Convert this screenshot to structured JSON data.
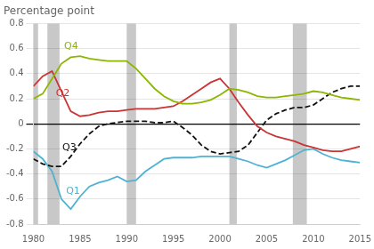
{
  "chart_data": {
    "type": "line",
    "title": "Percentage point",
    "x": [
      1980,
      1981,
      1982,
      1983,
      1984,
      1985,
      1986,
      1987,
      1988,
      1989,
      1990,
      1991,
      1992,
      1993,
      1994,
      1995,
      1996,
      1997,
      1998,
      1999,
      2000,
      2001,
      2002,
      2003,
      2004,
      2005,
      2006,
      2007,
      2008,
      2009,
      2010,
      2011,
      2012,
      2013,
      2014,
      2015
    ],
    "series": [
      {
        "name": "Q4",
        "color": "#8db600",
        "line_style": "solid",
        "values": [
          0.2,
          0.24,
          0.36,
          0.48,
          0.53,
          0.54,
          0.52,
          0.51,
          0.5,
          0.5,
          0.5,
          0.44,
          0.36,
          0.28,
          0.22,
          0.18,
          0.16,
          0.16,
          0.17,
          0.19,
          0.23,
          0.28,
          0.27,
          0.25,
          0.22,
          0.21,
          0.21,
          0.22,
          0.23,
          0.24,
          0.26,
          0.25,
          0.23,
          0.21,
          0.2,
          0.19
        ]
      },
      {
        "name": "Q2",
        "color": "#cc3333",
        "line_style": "solid",
        "values": [
          0.3,
          0.38,
          0.42,
          0.26,
          0.1,
          0.06,
          0.07,
          0.09,
          0.1,
          0.1,
          0.11,
          0.12,
          0.12,
          0.12,
          0.13,
          0.14,
          0.18,
          0.23,
          0.28,
          0.33,
          0.36,
          0.28,
          0.17,
          0.07,
          -0.02,
          -0.07,
          -0.1,
          -0.12,
          -0.14,
          -0.17,
          -0.19,
          -0.21,
          -0.22,
          -0.22,
          -0.2,
          -0.18
        ]
      },
      {
        "name": "Q3",
        "color": "#111111",
        "line_style": "dashed",
        "values": [
          -0.28,
          -0.32,
          -0.34,
          -0.34,
          -0.26,
          -0.16,
          -0.08,
          -0.02,
          0.0,
          0.01,
          0.02,
          0.02,
          0.02,
          0.01,
          0.01,
          0.02,
          -0.03,
          -0.09,
          -0.17,
          -0.22,
          -0.24,
          -0.23,
          -0.22,
          -0.17,
          -0.07,
          0.03,
          0.08,
          0.11,
          0.13,
          0.13,
          0.15,
          0.2,
          0.25,
          0.28,
          0.3,
          0.3
        ]
      },
      {
        "name": "Q1",
        "color": "#4eb3d3",
        "line_style": "solid",
        "values": [
          -0.22,
          -0.28,
          -0.38,
          -0.6,
          -0.68,
          -0.58,
          -0.5,
          -0.47,
          -0.45,
          -0.42,
          -0.46,
          -0.45,
          -0.38,
          -0.33,
          -0.28,
          -0.27,
          -0.27,
          -0.27,
          -0.26,
          -0.26,
          -0.26,
          -0.26,
          -0.28,
          -0.3,
          -0.33,
          -0.35,
          -0.32,
          -0.29,
          -0.25,
          -0.21,
          -0.2,
          -0.24,
          -0.27,
          -0.29,
          -0.3,
          -0.31
        ]
      }
    ],
    "xlim": [
      1980,
      2015
    ],
    "xticks": [
      1980,
      1985,
      1990,
      1995,
      2000,
      2005,
      2010,
      2015
    ],
    "ylim": [
      -0.8,
      0.8
    ],
    "yticks": [
      -0.8,
      -0.6,
      -0.4,
      -0.2,
      0.0,
      0.2,
      0.4,
      0.6,
      0.8
    ],
    "grid": "y",
    "shaded_regions": [
      [
        1980.0,
        1980.5
      ],
      [
        1981.5,
        1982.8
      ],
      [
        1990.0,
        1991.0
      ],
      [
        2001.0,
        2001.8
      ],
      [
        2007.8,
        2009.3
      ]
    ],
    "shade_color": "#c8c8c8",
    "annotations": [
      {
        "text": "Q4",
        "x": 1983.3,
        "y": 0.62,
        "color": "#8db600"
      },
      {
        "text": "Q2",
        "x": 1982.4,
        "y": 0.24,
        "color": "#cc3333"
      },
      {
        "text": "Q3",
        "x": 1983.1,
        "y": -0.19,
        "color": "#111111"
      },
      {
        "text": "Q1",
        "x": 1983.5,
        "y": -0.54,
        "color": "#4eb3d3"
      }
    ]
  }
}
